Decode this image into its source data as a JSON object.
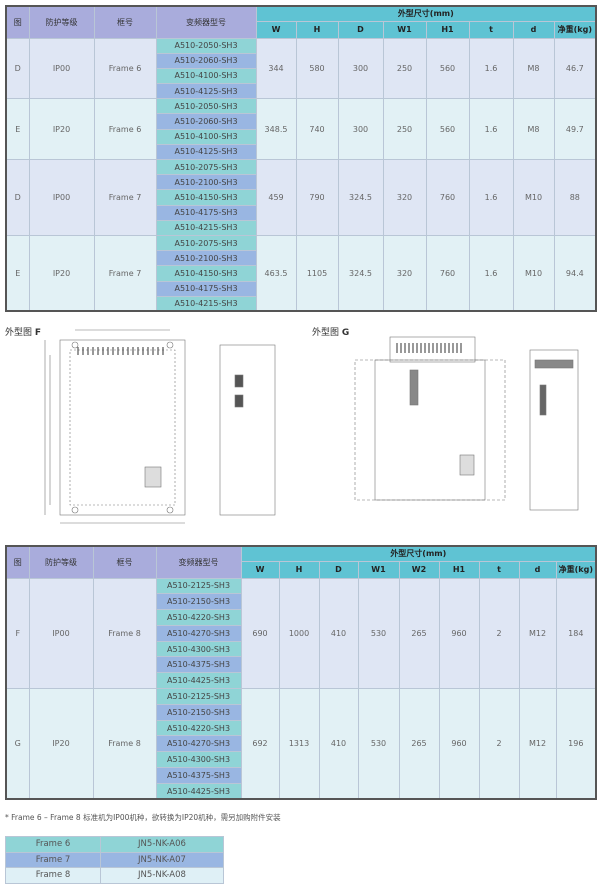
{
  "table1": {
    "headers": {
      "fig": "图",
      "ip": "防护等级",
      "frame": "框号",
      "model": "变频器型号",
      "group": "外型尺寸(mm)",
      "cols": [
        "W",
        "H",
        "D",
        "W1",
        "H1",
        "t",
        "d",
        "净重(kg)"
      ]
    },
    "rows": [
      {
        "fig": "D",
        "ip": "IP00",
        "frame": "Frame 6",
        "models": [
          "A510-2050-SH3",
          "A510-2060-SH3",
          "A510-4100-SH3",
          "A510-4125-SH3"
        ],
        "vals": [
          "344",
          "580",
          "300",
          "250",
          "560",
          "1.6",
          "M8",
          "46.7"
        ]
      },
      {
        "fig": "E",
        "ip": "IP20",
        "frame": "Frame 6",
        "models": [
          "A510-2050-SH3",
          "A510-2060-SH3",
          "A510-4100-SH3",
          "A510-4125-SH3"
        ],
        "vals": [
          "348.5",
          "740",
          "300",
          "250",
          "560",
          "1.6",
          "M8",
          "49.7"
        ]
      },
      {
        "fig": "D",
        "ip": "IP00",
        "frame": "Frame 7",
        "models": [
          "A510-2075-SH3",
          "A510-2100-SH3",
          "A510-4150-SH3",
          "A510-4175-SH3",
          "A510-4215-SH3"
        ],
        "vals": [
          "459",
          "790",
          "324.5",
          "320",
          "760",
          "1.6",
          "M10",
          "88"
        ]
      },
      {
        "fig": "E",
        "ip": "IP20",
        "frame": "Frame 7",
        "models": [
          "A510-2075-SH3",
          "A510-2100-SH3",
          "A510-4150-SH3",
          "A510-4175-SH3",
          "A510-4215-SH3"
        ],
        "vals": [
          "463.5",
          "1105",
          "324.5",
          "320",
          "760",
          "1.6",
          "M10",
          "94.4"
        ]
      }
    ]
  },
  "drawings": {
    "f_label": "外型图",
    "f_letter": "F",
    "g_label": "外型图",
    "g_letter": "G"
  },
  "table2": {
    "headers": {
      "fig": "图",
      "ip": "防护等级",
      "frame": "框号",
      "model": "变频器型号",
      "group": "外型尺寸(mm)",
      "cols": [
        "W",
        "H",
        "D",
        "W1",
        "W2",
        "H1",
        "t",
        "d",
        "净重(kg)"
      ]
    },
    "rows": [
      {
        "fig": "F",
        "ip": "IP00",
        "frame": "Frame 8",
        "models": [
          "A510-2125-SH3",
          "A510-2150-SH3",
          "A510-4220-SH3",
          "A510-4270-SH3",
          "A510-4300-SH3",
          "A510-4375-SH3",
          "A510-4425-SH3"
        ],
        "vals": [
          "690",
          "1000",
          "410",
          "530",
          "265",
          "960",
          "2",
          "M12",
          "184"
        ]
      },
      {
        "fig": "G",
        "ip": "IP20",
        "frame": "Frame 8",
        "models": [
          "A510-2125-SH3",
          "A510-2150-SH3",
          "A510-4220-SH3",
          "A510-4270-SH3",
          "A510-4300-SH3",
          "A510-4375-SH3",
          "A510-4425-SH3"
        ],
        "vals": [
          "692",
          "1313",
          "410",
          "530",
          "265",
          "960",
          "2",
          "M12",
          "196"
        ]
      }
    ]
  },
  "note": "* Frame 6 – Frame 8 标准机为IP00机种，欲转换为IP20机种，需另加购附件安装",
  "kits": [
    {
      "frame": "Frame 6",
      "part": "JN5-NK-A06",
      "color": "#8fd4d6"
    },
    {
      "frame": "Frame 7",
      "part": "JN5-NK-A07",
      "color": "#99b6e2"
    },
    {
      "frame": "Frame 8",
      "part": "JN5-NK-A08",
      "color": "#dff0f6"
    }
  ]
}
